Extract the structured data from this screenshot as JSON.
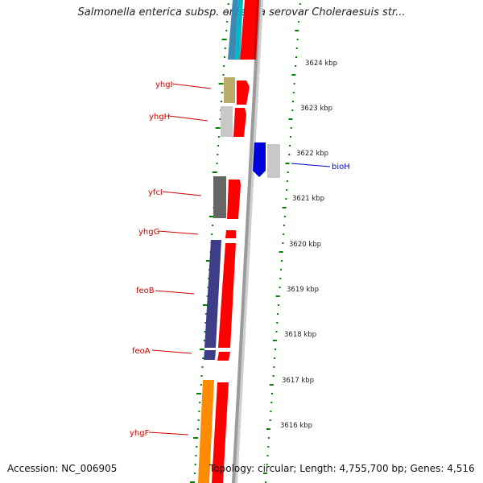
{
  "title": "Salmonella enterica subsp. enterica serovar Choleraesuis str...",
  "footer": {
    "accession": "Accession: NC_006905",
    "topology": "Topology: circular; Length: 4,755,700 bp; Genes: 4,516"
  },
  "colors": {
    "gene_label": "#cc0000",
    "biotin_label": "#0000cc",
    "tick": "#008000",
    "backbone": "#888888"
  },
  "scale_labels": [
    "3624 kbp",
    "3623 kbp",
    "3622 kbp",
    "3621 kbp",
    "3620 kbp",
    "3619 kbp",
    "3618 kbp",
    "3617 kbp",
    "3616 kbp"
  ],
  "left_genes": [
    {
      "name": "yhgI",
      "color": "#b8ab6a"
    },
    {
      "name": "yhgH",
      "color": "#c0c0c0"
    },
    {
      "name": "yfcI",
      "color": "#666666"
    },
    {
      "name": "yhgG",
      "color": "#3d3d8a"
    },
    {
      "name": "feoB",
      "color": "#3d3d8a"
    },
    {
      "name": "feoA",
      "color": "#3d3d8a"
    },
    {
      "name": "yhgF",
      "color": "#ff8c00"
    }
  ],
  "right_genes": [
    {
      "name": "bioH",
      "color": "#0000dd"
    }
  ]
}
